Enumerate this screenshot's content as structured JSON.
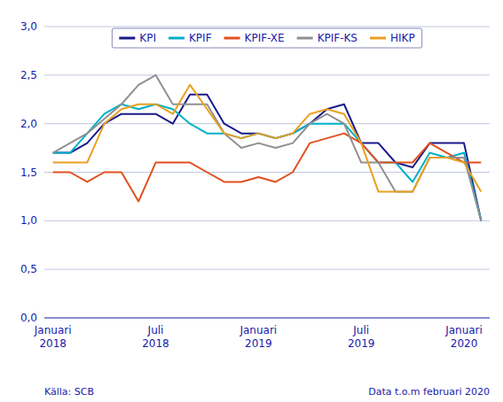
{
  "chart_data": {
    "type": "line",
    "categories": [
      "Januari 2018",
      null,
      null,
      null,
      null,
      null,
      "Juli 2018",
      null,
      null,
      null,
      null,
      null,
      "Januari 2019",
      null,
      null,
      null,
      null,
      null,
      "Juli 2019",
      null,
      null,
      null,
      null,
      null,
      "Januari 2020",
      null
    ],
    "series": [
      {
        "name": "KPI",
        "color": "#1a1a8c",
        "values": [
          1.7,
          1.7,
          1.8,
          2.0,
          2.1,
          2.1,
          2.1,
          2.0,
          2.3,
          2.3,
          2.0,
          1.9,
          1.9,
          1.85,
          1.9,
          2.0,
          2.15,
          2.2,
          1.8,
          1.8,
          1.6,
          1.55,
          1.8,
          1.8,
          1.8,
          1.0
        ]
      },
      {
        "name": "KPIF",
        "color": "#00b0c8",
        "values": [
          1.7,
          1.7,
          1.9,
          2.1,
          2.2,
          2.15,
          2.2,
          2.15,
          2.0,
          1.9,
          1.9,
          1.85,
          1.9,
          1.85,
          1.9,
          2.0,
          2.0,
          2.0,
          1.8,
          1.6,
          1.6,
          1.4,
          1.7,
          1.65,
          1.7,
          1.0
        ]
      },
      {
        "name": "KPIF-XE",
        "color": "#e05020",
        "values": [
          1.5,
          1.5,
          1.4,
          1.5,
          1.5,
          1.2,
          1.6,
          1.6,
          1.6,
          1.5,
          1.4,
          1.4,
          1.45,
          1.4,
          1.5,
          1.8,
          1.85,
          1.9,
          1.8,
          1.6,
          1.6,
          1.6,
          1.8,
          1.7,
          1.6,
          1.6
        ]
      },
      {
        "name": "KPIF-KS",
        "color": "#909090",
        "values": [
          1.7,
          1.8,
          1.9,
          2.05,
          2.2,
          2.4,
          2.5,
          2.2,
          2.2,
          2.2,
          1.9,
          1.75,
          1.8,
          1.75,
          1.8,
          2.0,
          2.1,
          2.0,
          1.6,
          1.6,
          1.3,
          1.3,
          1.65,
          1.65,
          1.65,
          1.0
        ]
      },
      {
        "name": "HIKP",
        "color": "#e8a020",
        "values": [
          1.6,
          1.6,
          1.6,
          2.0,
          2.15,
          2.2,
          2.2,
          2.1,
          2.4,
          2.15,
          1.9,
          1.85,
          1.9,
          1.85,
          1.9,
          2.1,
          2.15,
          2.1,
          1.8,
          1.3,
          1.3,
          1.3,
          1.65,
          1.65,
          1.6,
          1.3
        ]
      }
    ],
    "ylim": [
      0.0,
      3.0
    ],
    "yticks": [
      {
        "value": 0.0,
        "label": "0,0"
      },
      {
        "value": 0.5,
        "label": "0,5"
      },
      {
        "value": 1.0,
        "label": "1,0"
      },
      {
        "value": 1.5,
        "label": "1,5"
      },
      {
        "value": 2.0,
        "label": "2,0"
      },
      {
        "value": 2.5,
        "label": "2,5"
      },
      {
        "value": 3.0,
        "label": "3,0"
      }
    ],
    "grid": true,
    "legend": "top",
    "annotations": [
      "Källa: SCB",
      "Data t.o.m februari 2020"
    ]
  }
}
